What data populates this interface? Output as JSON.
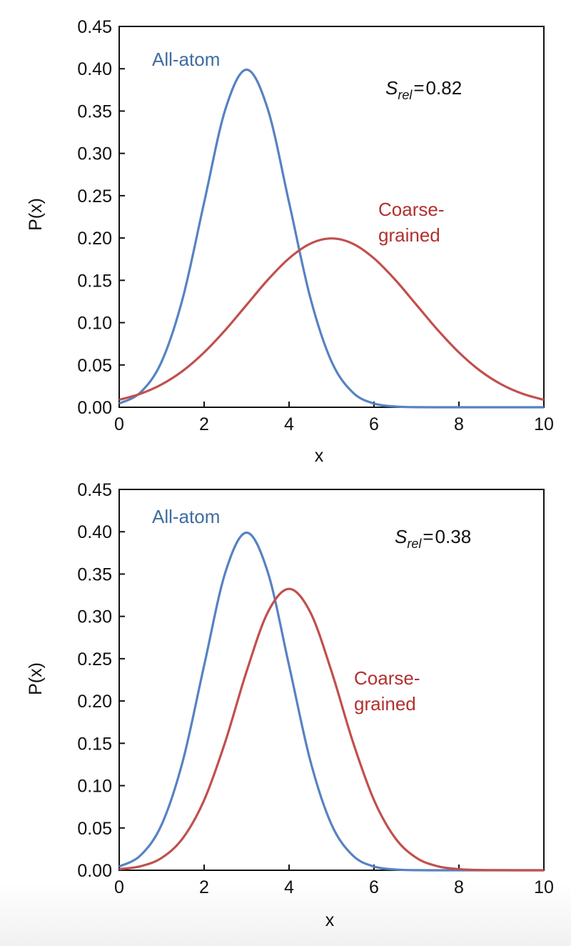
{
  "chart_data": [
    {
      "type": "line",
      "title": "",
      "xlabel": "x",
      "ylabel": "P(x)",
      "xlim": [
        0,
        10
      ],
      "ylim": [
        0,
        0.45
      ],
      "xticks": [
        "0",
        "2",
        "4",
        "6",
        "8",
        "10"
      ],
      "yticks": [
        "0.00",
        "0.05",
        "0.10",
        "0.15",
        "0.20",
        "0.25",
        "0.30",
        "0.35",
        "0.40",
        "0.45"
      ],
      "grid": false,
      "annotation": {
        "symbol": "S",
        "subscript": "rel",
        "equals": "=",
        "value": "0.82"
      },
      "x": [
        0,
        0.5,
        1,
        1.5,
        2,
        2.5,
        3,
        3.5,
        4,
        4.5,
        5,
        5.5,
        6,
        6.5,
        7,
        7.5,
        8,
        8.5,
        9,
        9.5,
        10
      ],
      "series": [
        {
          "name": "All-atom",
          "label_lines": [
            "All-atom"
          ],
          "color": "#5682c2",
          "label_color": "#3f6c9f",
          "values": [
            0.0044,
            0.0175,
            0.054,
            0.1295,
            0.242,
            0.3521,
            0.3989,
            0.3521,
            0.242,
            0.1295,
            0.054,
            0.0175,
            0.0044,
            0.0009,
            0.0001,
            0,
            0,
            0,
            0,
            0,
            0
          ]
        },
        {
          "name": "Coarse-grained",
          "label_lines": [
            "Coarse-",
            "grained"
          ],
          "color": "#c0504d",
          "label_color": "#b2302e",
          "values": [
            0.0088,
            0.0159,
            0.027,
            0.0431,
            0.0648,
            0.0913,
            0.121,
            0.1506,
            0.176,
            0.1933,
            0.1995,
            0.1933,
            0.176,
            0.1506,
            0.121,
            0.0913,
            0.0648,
            0.0431,
            0.027,
            0.0159,
            0.0088
          ]
        }
      ]
    },
    {
      "type": "line",
      "title": "",
      "xlabel": "x",
      "ylabel": "P(x)",
      "xlim": [
        0,
        10
      ],
      "ylim": [
        0,
        0.45
      ],
      "xticks": [
        "0",
        "2",
        "4",
        "6",
        "8",
        "10"
      ],
      "yticks": [
        "0.00",
        "0.05",
        "0.10",
        "0.15",
        "0.20",
        "0.25",
        "0.30",
        "0.35",
        "0.40",
        "0.45"
      ],
      "grid": false,
      "annotation": {
        "symbol": "S",
        "subscript": "rel",
        "equals": "=",
        "value": "0.38"
      },
      "x": [
        0,
        0.5,
        1,
        1.5,
        2,
        2.5,
        3,
        3.5,
        4,
        4.5,
        5,
        5.5,
        6,
        6.5,
        7,
        7.5,
        8,
        8.5,
        9,
        9.5,
        10
      ],
      "series": [
        {
          "name": "All-atom",
          "label_lines": [
            "All-atom"
          ],
          "color": "#5682c2",
          "label_color": "#3f6c9f",
          "values": [
            0.0044,
            0.0175,
            0.054,
            0.1295,
            0.242,
            0.3521,
            0.3989,
            0.3521,
            0.242,
            0.1295,
            0.054,
            0.0175,
            0.0044,
            0.0009,
            0.0001,
            0,
            0,
            0,
            0,
            0,
            0
          ]
        },
        {
          "name": "Coarse-grained",
          "label_lines": [
            "Coarse-",
            "grained"
          ],
          "color": "#c0504d",
          "label_color": "#b2302e",
          "values": [
            0.0013,
            0.0047,
            0.0146,
            0.038,
            0.0829,
            0.1522,
            0.235,
            0.3049,
            0.3325,
            0.3049,
            0.235,
            0.1522,
            0.0829,
            0.038,
            0.0146,
            0.0047,
            0.0013,
            0.0003,
            0.0001,
            0,
            0
          ]
        }
      ]
    }
  ]
}
